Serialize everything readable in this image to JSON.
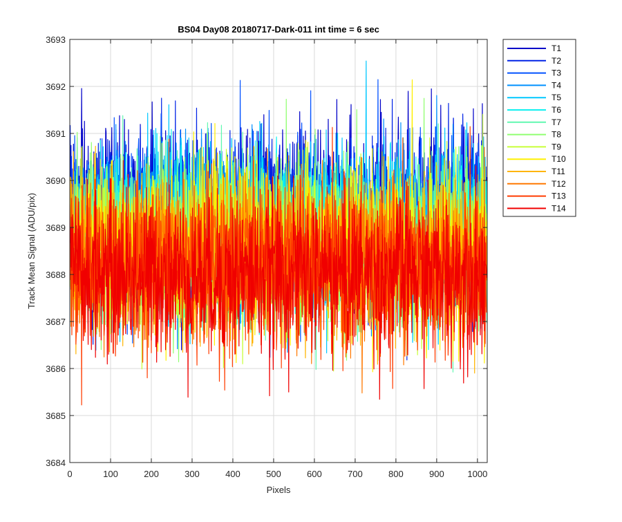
{
  "chart_data": {
    "type": "line",
    "title": "BS04 Day08 20180717-Dark-011 int time = 6 sec",
    "xlabel": "Pixels",
    "ylabel": "Track Mean Signal (ADU/pix)",
    "xlim": [
      0,
      1024
    ],
    "ylim": [
      3684,
      3693
    ],
    "xticks": [
      0,
      100,
      200,
      300,
      400,
      500,
      600,
      700,
      800,
      900,
      1000
    ],
    "yticks": [
      3684,
      3685,
      3686,
      3687,
      3688,
      3689,
      3690,
      3691,
      3692,
      3693
    ],
    "grid": true,
    "legend_position": "outside-right-top",
    "colormap": "jet",
    "series": [
      {
        "name": "T1",
        "color": "#0000C8",
        "mean": 3689.3,
        "spread": 1.05
      },
      {
        "name": "T2",
        "color": "#0022E6",
        "mean": 3689.2,
        "spread": 1.05
      },
      {
        "name": "T3",
        "color": "#0050FF",
        "mean": 3689.1,
        "spread": 1.0
      },
      {
        "name": "T4",
        "color": "#0090FF",
        "mean": 3689.0,
        "spread": 1.0
      },
      {
        "name": "T5",
        "color": "#00C8FF",
        "mean": 3688.9,
        "spread": 1.0
      },
      {
        "name": "T6",
        "color": "#10F0F0",
        "mean": 3688.9,
        "spread": 1.0
      },
      {
        "name": "T7",
        "color": "#60F8B0",
        "mean": 3688.8,
        "spread": 1.0
      },
      {
        "name": "T8",
        "color": "#90FF70",
        "mean": 3688.7,
        "spread": 1.0
      },
      {
        "name": "T9",
        "color": "#C8FF38",
        "mean": 3688.6,
        "spread": 1.0
      },
      {
        "name": "T10",
        "color": "#FFF000",
        "mean": 3688.5,
        "spread": 1.0
      },
      {
        "name": "T11",
        "color": "#FFB400",
        "mean": 3688.4,
        "spread": 1.0
      },
      {
        "name": "T12",
        "color": "#FF7800",
        "mean": 3688.3,
        "spread": 1.0
      },
      {
        "name": "T13",
        "color": "#FF3C00",
        "mean": 3688.1,
        "spread": 1.0
      },
      {
        "name": "T14",
        "color": "#F00000",
        "mean": 3688.0,
        "spread": 1.0
      }
    ]
  }
}
